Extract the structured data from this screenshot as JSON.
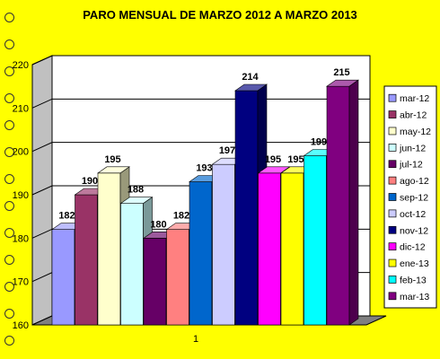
{
  "chart_data": {
    "type": "bar",
    "title": "PARO MENSUAL DE MARZO 2012 A MARZO 2013",
    "categories": [
      "1"
    ],
    "series": [
      {
        "name": "mar-12",
        "value": 182,
        "color": "#9999ff"
      },
      {
        "name": "abr-12",
        "value": 190,
        "color": "#993366"
      },
      {
        "name": "may-12",
        "value": 195,
        "color": "#ffffcc"
      },
      {
        "name": "jun-12",
        "value": 188,
        "color": "#ccffff"
      },
      {
        "name": "jul-12",
        "value": 180,
        "color": "#660066"
      },
      {
        "name": "ago-12",
        "value": 182,
        "color": "#ff8080"
      },
      {
        "name": "sep-12",
        "value": 193,
        "color": "#0066cc"
      },
      {
        "name": "oct-12",
        "value": 197,
        "color": "#ccccff"
      },
      {
        "name": "nov-12",
        "value": 214,
        "color": "#000080"
      },
      {
        "name": "dic-12",
        "value": 195,
        "color": "#ff00ff"
      },
      {
        "name": "ene-13",
        "value": 195,
        "color": "#ffff00"
      },
      {
        "name": "feb-13",
        "value": 199,
        "color": "#00ffff"
      },
      {
        "name": "mar-13",
        "value": 215,
        "color": "#800080"
      }
    ],
    "ylim": [
      160,
      220
    ],
    "yticks": [
      160,
      170,
      180,
      190,
      200,
      210,
      220
    ],
    "grid": true,
    "legend": "right"
  }
}
